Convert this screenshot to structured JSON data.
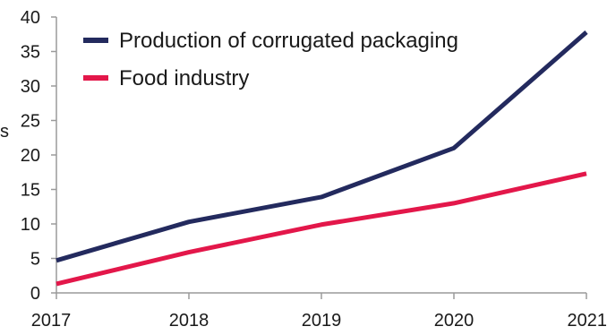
{
  "chart_data": {
    "type": "line",
    "title": "",
    "xlabel": "",
    "ylabel": "s",
    "x": [
      2017,
      2018,
      2019,
      2020,
      2021
    ],
    "ylim": [
      0,
      40
    ],
    "yticks": [
      0,
      5,
      10,
      15,
      20,
      25,
      30,
      35,
      40
    ],
    "xticks": [
      "2017",
      "2018",
      "2019",
      "2020",
      "2021"
    ],
    "grid": false,
    "legend_position": "top-left",
    "series": [
      {
        "name": "Production of corrugated packaging",
        "color": "#232a5e",
        "values": [
          4.7,
          10.3,
          13.9,
          21.0,
          37.8
        ]
      },
      {
        "name": "Food industry",
        "color": "#e3174a",
        "values": [
          1.3,
          5.9,
          9.9,
          13.0,
          17.3
        ]
      }
    ]
  }
}
